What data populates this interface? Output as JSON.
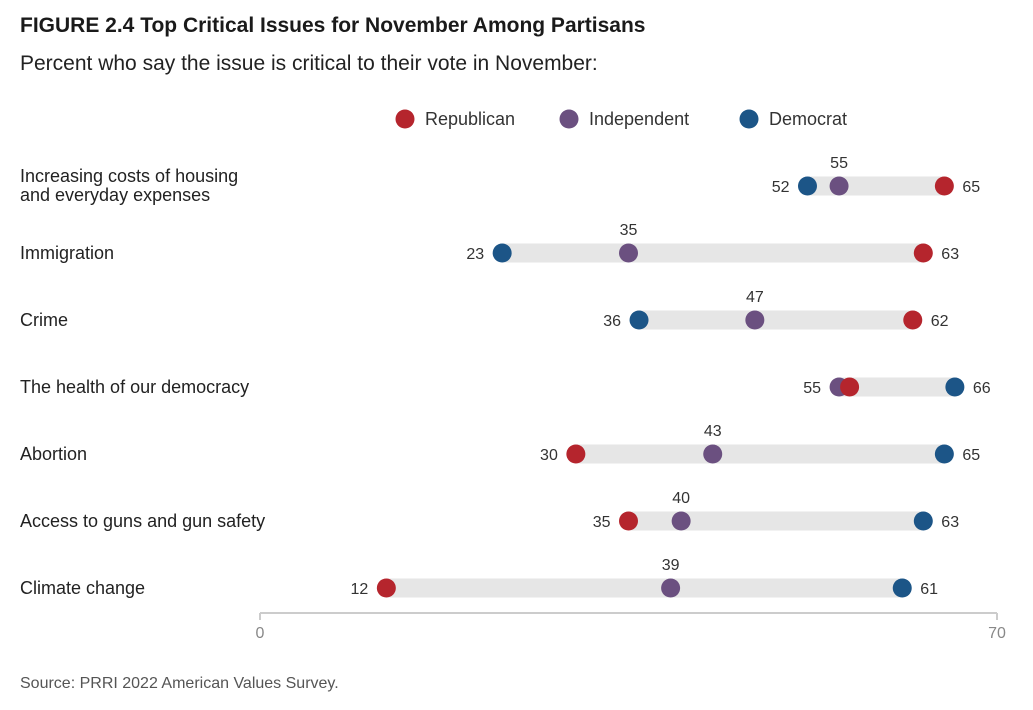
{
  "title": "FIGURE 2.4  Top Critical Issues for November Among Partisans",
  "subtitle": "Percent who say the issue is critical to their vote in November:",
  "source": "Source: PRRI 2022 American Values Survey.",
  "chart_data": {
    "type": "dot",
    "title": "FIGURE 2.4  Top Critical Issues for November Among Partisans",
    "subtitle": "Percent who say the issue is critical to their vote in November:",
    "xlim": [
      0,
      70
    ],
    "ticks": [
      0,
      70
    ],
    "legend_position": "top",
    "series": [
      {
        "key": "rep",
        "name": "Republican",
        "color": "#b5252d"
      },
      {
        "key": "ind",
        "name": "Independent",
        "color": "#6b5080"
      },
      {
        "key": "dem",
        "name": "Democrat",
        "color": "#1c5587"
      }
    ],
    "categories": [
      {
        "label_lines": [
          "Increasing costs of housing",
          "and everyday expenses"
        ],
        "rep": 65,
        "ind": 55,
        "dem": 52
      },
      {
        "label_lines": [
          "Immigration"
        ],
        "rep": 63,
        "ind": 35,
        "dem": 23
      },
      {
        "label_lines": [
          "Crime"
        ],
        "rep": 62,
        "ind": 47,
        "dem": 36
      },
      {
        "label_lines": [
          "The health of our democracy"
        ],
        "rep": 56,
        "ind": 55,
        "dem": 66
      },
      {
        "label_lines": [
          "Abortion"
        ],
        "rep": 30,
        "ind": 43,
        "dem": 65
      },
      {
        "label_lines": [
          "Access to guns and gun safety"
        ],
        "rep": 35,
        "ind": 40,
        "dem": 63
      },
      {
        "label_lines": [
          "Climate change"
        ],
        "rep": 12,
        "ind": 39,
        "dem": 61
      }
    ],
    "value_labels": [
      {
        "left": "52",
        "top": "55",
        "right": "65"
      },
      {
        "left": "23",
        "top": "35",
        "right": "63"
      },
      {
        "left": "36",
        "top": "47",
        "right": "62"
      },
      {
        "left": "55",
        "top": "",
        "right": "66"
      },
      {
        "left": "30",
        "top": "43",
        "right": "65"
      },
      {
        "left": "35",
        "top": "40",
        "right": "63"
      },
      {
        "left": "12",
        "top": "39",
        "right": "61"
      }
    ],
    "colors": {
      "track": "#e6e6e6",
      "axis": "#cccccc"
    }
  }
}
